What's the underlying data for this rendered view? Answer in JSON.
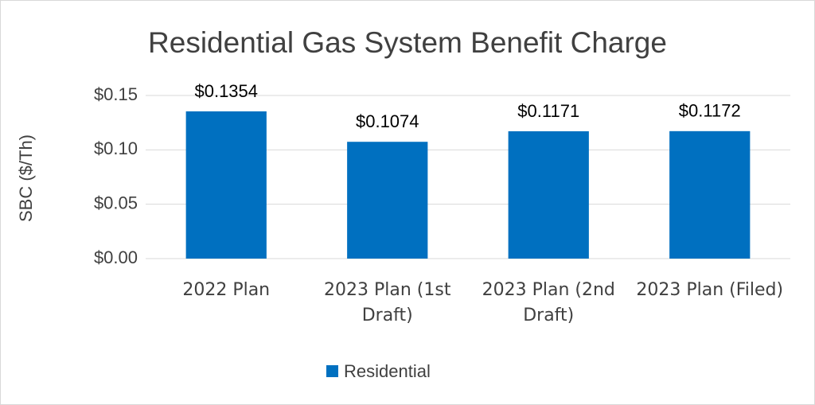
{
  "chart_data": {
    "type": "bar",
    "title": "Residential Gas System Benefit Charge",
    "y_label": "SBC ($/Th)",
    "categories": [
      "2022 Plan",
      "2023 Plan (1st Draft)",
      "2023 Plan (2nd Draft)",
      "2023 Plan (Filed)"
    ],
    "series": [
      {
        "name": "Residential",
        "color": "#0070c0",
        "values": [
          0.1354,
          0.1074,
          0.1171,
          0.1172
        ],
        "value_labels": [
          "$0.1354",
          "$0.1074",
          "$0.1171",
          "$0.1172"
        ]
      }
    ],
    "ylim": [
      0,
      0.15
    ],
    "yticks": [
      {
        "value": 0,
        "label": "$0.00"
      },
      {
        "value": 0.05,
        "label": "$0.05"
      },
      {
        "value": 0.1,
        "label": "$0.10"
      },
      {
        "value": 0.15,
        "label": "$0.15"
      }
    ],
    "grid": true,
    "legend": "bottom"
  }
}
